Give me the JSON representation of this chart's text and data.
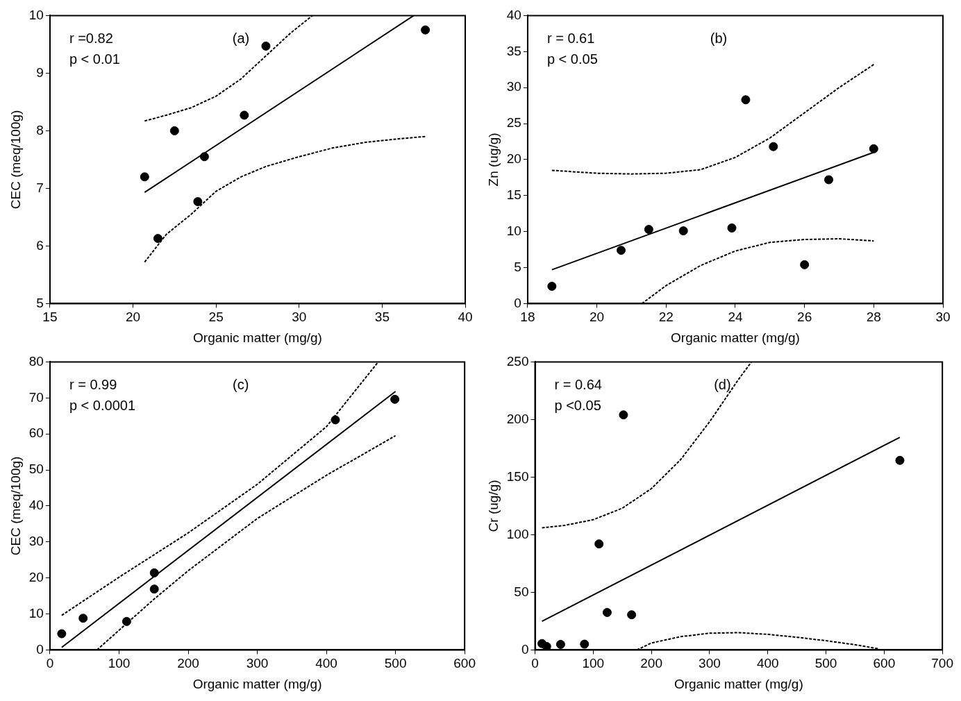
{
  "chart_data": [
    {
      "type": "scatter",
      "xlabel": "Organic matter (mg/g)",
      "ylabel": "CEC (meq/100g)",
      "xlim": [
        15,
        40
      ],
      "xticks": [
        15,
        20,
        25,
        30,
        35,
        40
      ],
      "ylim": [
        5,
        10
      ],
      "yticks": [
        5,
        6,
        7,
        8,
        9,
        10
      ],
      "annotations": [
        "r =0.82",
        "p < 0.01",
        "(a)"
      ],
      "series": [
        {
          "type": "scatter",
          "color": "#000000",
          "marker": "circle",
          "x": [
            20.7,
            21.5,
            22.5,
            23.9,
            24.3,
            26.7,
            28.0,
            37.6
          ],
          "values": [
            7.2,
            6.13,
            8.0,
            6.77,
            7.55,
            8.27,
            9.47,
            9.75
          ]
        },
        {
          "type": "line",
          "color": "#000000",
          "marker": "none",
          "line_style": "solid",
          "x": [
            20.7,
            36.9
          ],
          "values": [
            6.93,
            10
          ]
        },
        {
          "type": "line",
          "color": "#000000",
          "marker": "none",
          "line_style": "dashed",
          "x": [
            20.7,
            22,
            23.5,
            25,
            26.5,
            28,
            29.5,
            30.8
          ],
          "values": [
            8.17,
            8.27,
            8.4,
            8.6,
            8.9,
            9.3,
            9.7,
            10
          ]
        },
        {
          "type": "line",
          "color": "#000000",
          "marker": "none",
          "line_style": "dashed",
          "x": [
            20.7,
            22,
            23.5,
            25,
            26.5,
            28,
            30,
            32,
            34,
            36,
            37.6
          ],
          "values": [
            5.72,
            6.2,
            6.55,
            6.95,
            7.2,
            7.38,
            7.55,
            7.7,
            7.8,
            7.86,
            7.9
          ]
        }
      ]
    },
    {
      "type": "scatter",
      "xlabel": "Organic matter (mg/g)",
      "ylabel": "Zn (ug/g)",
      "xlim": [
        18,
        30
      ],
      "xticks": [
        18,
        20,
        22,
        24,
        26,
        28,
        30
      ],
      "ylim": [
        0,
        40
      ],
      "yticks": [
        0,
        5,
        10,
        15,
        20,
        25,
        30,
        35,
        40
      ],
      "annotations": [
        "r = 0.61",
        "p < 0.05",
        "(b)"
      ],
      "series": [
        {
          "type": "scatter",
          "color": "#000000",
          "marker": "circle",
          "x": [
            18.7,
            20.7,
            21.5,
            22.5,
            23.9,
            24.3,
            25.1,
            26.0,
            26.7,
            28.0
          ],
          "values": [
            2.4,
            7.4,
            10.3,
            10.1,
            10.5,
            28.3,
            21.8,
            5.4,
            17.2,
            21.5
          ]
        },
        {
          "type": "line",
          "color": "#000000",
          "marker": "none",
          "line_style": "solid",
          "x": [
            18.7,
            28
          ],
          "values": [
            4.7,
            21
          ]
        },
        {
          "type": "line",
          "color": "#000000",
          "marker": "none",
          "line_style": "dashed",
          "x": [
            18.7,
            20,
            21,
            22,
            23,
            24,
            25,
            26,
            27,
            28
          ],
          "values": [
            18.5,
            18.1,
            18.0,
            18.1,
            18.6,
            20.3,
            23,
            26.5,
            30,
            33.2
          ]
        },
        {
          "type": "line",
          "color": "#000000",
          "marker": "none",
          "line_style": "dashed",
          "x": [
            21.3,
            22,
            23,
            24,
            25,
            26,
            27,
            28
          ],
          "values": [
            0,
            2.5,
            5.3,
            7.3,
            8.5,
            8.9,
            9.0,
            8.7
          ]
        }
      ]
    },
    {
      "type": "scatter",
      "xlabel": "Organic matter (mg/g)",
      "ylabel": "CEC (meq/100g)",
      "xlim": [
        0,
        600
      ],
      "xticks": [
        0,
        100,
        200,
        300,
        400,
        500,
        600
      ],
      "ylim": [
        0,
        80
      ],
      "yticks": [
        0,
        10,
        20,
        30,
        40,
        50,
        60,
        70,
        80
      ],
      "annotations": [
        "r = 0.99",
        "p < 0.0001",
        "(c)"
      ],
      "series": [
        {
          "type": "scatter",
          "color": "#000000",
          "marker": "circle",
          "x": [
            17,
            48,
            111,
            151,
            151,
            413,
            499
          ],
          "values": [
            4.5,
            8.8,
            7.9,
            21.4,
            16.9,
            63.9,
            69.6
          ]
        },
        {
          "type": "line",
          "color": "#000000",
          "marker": "none",
          "line_style": "solid",
          "x": [
            17,
            500
          ],
          "values": [
            0.7,
            71.8
          ]
        },
        {
          "type": "line",
          "color": "#000000",
          "marker": "none",
          "line_style": "dashed",
          "x": [
            17,
            100,
            200,
            300,
            400,
            475
          ],
          "values": [
            9.6,
            20.2,
            32.5,
            46,
            62,
            80
          ]
        },
        {
          "type": "line",
          "color": "#000000",
          "marker": "none",
          "line_style": "dashed",
          "x": [
            68,
            150,
            200,
            300,
            400,
            500
          ],
          "values": [
            0,
            14,
            22,
            36.5,
            48.5,
            59.5
          ]
        }
      ]
    },
    {
      "type": "scatter",
      "xlabel": "Organic matter (mg/g)",
      "ylabel": "Cr (ug/g)",
      "xlim": [
        0,
        700
      ],
      "xticks": [
        0,
        100,
        200,
        300,
        400,
        500,
        600,
        700
      ],
      "ylim": [
        0,
        250
      ],
      "yticks": [
        0,
        50,
        100,
        150,
        200,
        250
      ],
      "annotations": [
        "r = 0.64",
        "p <0.05",
        "(d)"
      ],
      "series": [
        {
          "type": "scatter",
          "color": "#000000",
          "marker": "circle",
          "x": [
            12,
            20,
            44,
            85,
            110,
            124,
            152,
            166,
            627
          ],
          "values": [
            5.5,
            3,
            4.8,
            5,
            92,
            32.5,
            204,
            30.5,
            164.5
          ]
        },
        {
          "type": "line",
          "color": "#000000",
          "marker": "none",
          "line_style": "solid",
          "x": [
            12,
            627
          ],
          "values": [
            24.8,
            184.5
          ]
        },
        {
          "type": "line",
          "color": "#000000",
          "marker": "none",
          "line_style": "dashed",
          "x": [
            12,
            50,
            100,
            150,
            200,
            250,
            300,
            350,
            372
          ],
          "values": [
            106,
            108,
            113,
            123,
            140,
            165,
            198,
            235,
            250
          ]
        },
        {
          "type": "line",
          "color": "#000000",
          "marker": "none",
          "line_style": "dashed",
          "x": [
            175,
            200,
            250,
            300,
            350,
            400,
            450,
            500,
            550,
            590
          ],
          "values": [
            0,
            6,
            11.5,
            14.5,
            15,
            13.5,
            11,
            8,
            4.5,
            1
          ]
        }
      ]
    }
  ]
}
